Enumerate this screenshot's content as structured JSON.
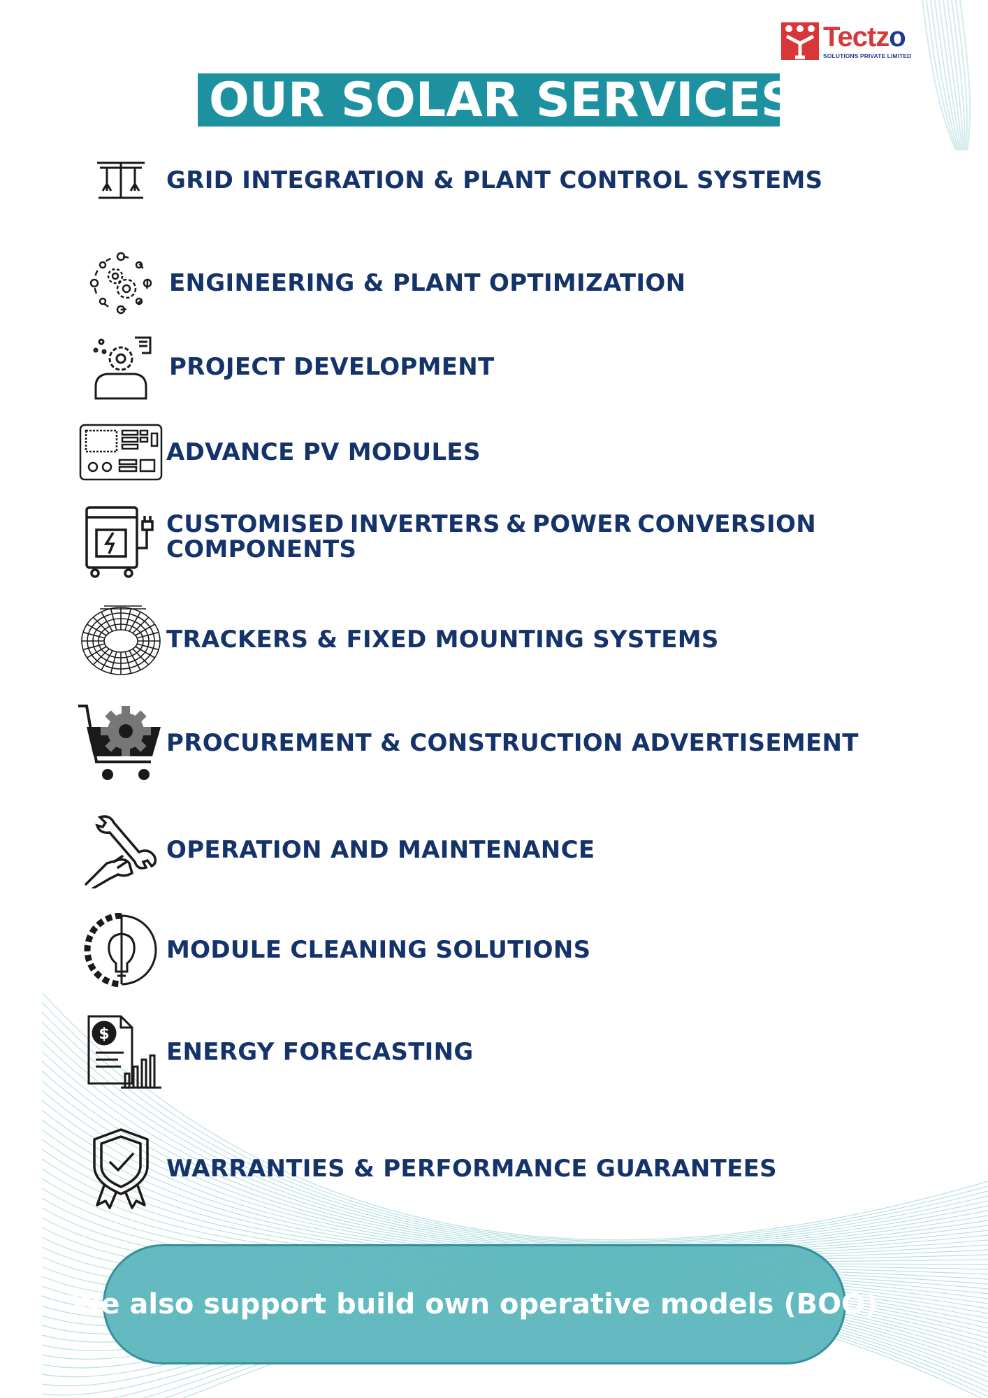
{
  "logo": {
    "name": "Tectz",
    "name_end": "o",
    "subtitle": "SOLUTIONS PRIVATE LIMITED"
  },
  "title": "OUR SOLAR SERVICES",
  "colors": {
    "accent_teal": "#1e91a0",
    "label_navy": "#15336b",
    "logo_red": "#d9363a",
    "logo_blue": "#1d3c8f",
    "pill_teal": "#5cb7bd"
  },
  "services": [
    {
      "label": "GRID INTEGRATION & PLANT CONTROL SYSTEMS",
      "icon": "grid-tower-icon"
    },
    {
      "label": "ENGINEERING & PLANT OPTIMIZATION",
      "icon": "gears-network-icon"
    },
    {
      "label": "PROJECT DEVELOPMENT",
      "icon": "engineer-gear-icon"
    },
    {
      "label": "ADVANCE PV MODULES",
      "icon": "circuit-board-icon"
    },
    {
      "label_line1_words": [
        "CUSTOMISED",
        "INVERTERS",
        "&",
        "POWER",
        "CONVERSION"
      ],
      "label_line2": "COMPONENTS",
      "icon": "inverter-plug-icon"
    },
    {
      "label": "TRACKERS & FIXED MOUNTING SYSTEMS",
      "icon": "tracker-ring-icon"
    },
    {
      "label": "PROCUREMENT & CONSTRUCTION ADVERTISEMENT",
      "icon": "cart-gear-icon"
    },
    {
      "label": "OPERATION AND MAINTENANCE",
      "icon": "hand-wrench-icon"
    },
    {
      "label": "MODULE CLEANING SOLUTIONS",
      "icon": "gear-bulb-icon"
    },
    {
      "label": "ENERGY FORECASTING",
      "icon": "dollar-report-icon"
    },
    {
      "label": "WARRANTIES & PERFORMANCE GUARANTEES",
      "icon": "shield-check-icon"
    }
  ],
  "footer_pill": "We also support build own operative models (BOO)"
}
